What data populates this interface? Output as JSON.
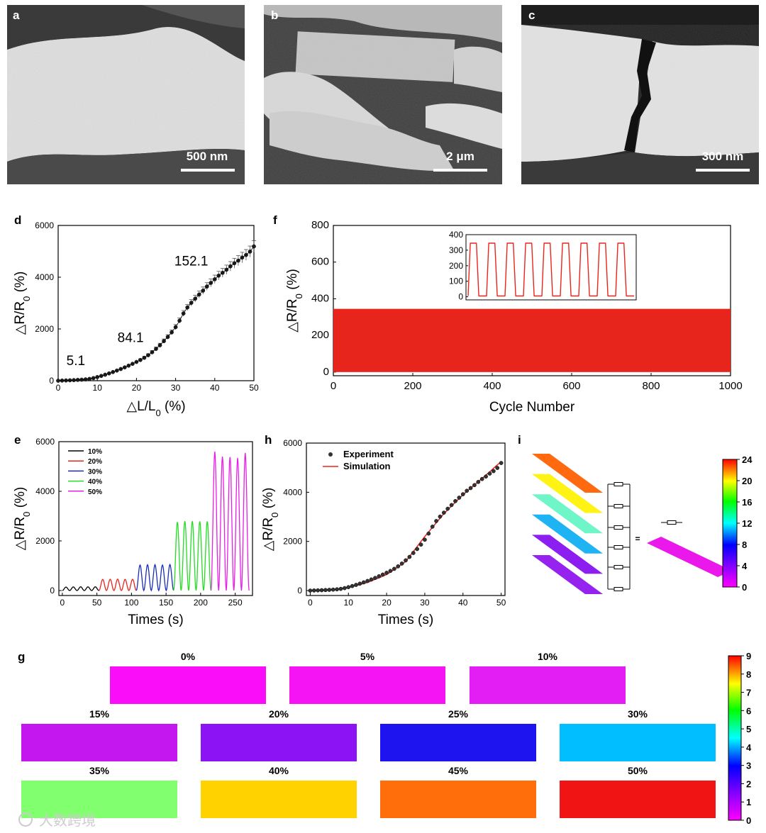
{
  "panel_labels": {
    "a": "a",
    "b": "b",
    "c": "c",
    "d": "d",
    "e": "e",
    "f": "f",
    "g": "g",
    "h": "h",
    "i": "i"
  },
  "sem": {
    "a": {
      "scale_text": "500 nm"
    },
    "b": {
      "scale_text": "2 μm"
    },
    "c": {
      "scale_text": "300 nm"
    }
  },
  "watermark": "大数跨境",
  "colors": {
    "red": "#e8251c",
    "black": "#000000",
    "blue": "#1a2db8",
    "green": "#22dd22",
    "magenta": "#e81ee8"
  },
  "chart_data": [
    {
      "id": "d",
      "type": "scatter",
      "xlabel_main": "△L/L",
      "xlabel_sub": "0",
      "xlabel_tail": " (%)",
      "ylabel_main": "△R/R",
      "ylabel_sub": "0",
      "ylabel_tail": " (%)",
      "xlim": [
        0,
        50
      ],
      "ylim": [
        0,
        6000
      ],
      "xticks": [
        "0",
        "10",
        "20",
        "30",
        "40",
        "50"
      ],
      "yticks": [
        "0",
        "2000",
        "4000",
        "6000"
      ],
      "annotations": [
        {
          "text": "5.1",
          "x": 4.5,
          "y": 600
        },
        {
          "text": "84.1",
          "x": 18.5,
          "y": 1500
        },
        {
          "text": "152.1",
          "x": 34,
          "y": 4450
        }
      ],
      "x": [
        0,
        1,
        2,
        3,
        4,
        5,
        6,
        7,
        8,
        9,
        10,
        11,
        12,
        13,
        14,
        15,
        16,
        17,
        18,
        19,
        20,
        21,
        22,
        23,
        24,
        25,
        26,
        27,
        28,
        29,
        30,
        31,
        32,
        33,
        34,
        35,
        36,
        37,
        38,
        39,
        40,
        41,
        42,
        43,
        44,
        45,
        46,
        47,
        48,
        49,
        50
      ],
      "y": [
        0,
        5,
        10,
        16,
        23,
        31,
        40,
        52,
        70,
        100,
        140,
        185,
        232,
        282,
        335,
        392,
        452,
        515,
        582,
        652,
        725,
        800,
        885,
        985,
        1100,
        1230,
        1370,
        1530,
        1690,
        1870,
        2070,
        2320,
        2600,
        2830,
        3010,
        3170,
        3330,
        3480,
        3640,
        3780,
        3920,
        4060,
        4170,
        4290,
        4420,
        4540,
        4640,
        4760,
        4860,
        4990,
        5190
      ]
    },
    {
      "id": "f",
      "type": "area",
      "xlabel": "Cycle Number",
      "ylabel_main": "△R/R",
      "ylabel_sub": "0",
      "ylabel_tail": " (%)",
      "xlim": [
        0,
        1000
      ],
      "ylim": [
        -20,
        800
      ],
      "xticks": [
        "0",
        "200",
        "400",
        "600",
        "800",
        "1000"
      ],
      "yticks": [
        "0",
        "200",
        "400",
        "600",
        "800"
      ],
      "band_min": 0,
      "band_max": 345,
      "inset": {
        "type": "line",
        "ylim": [
          -20,
          400
        ],
        "yticks": [
          "0",
          "100",
          "200",
          "300",
          "400"
        ],
        "cycles": 9,
        "min": 5,
        "max": 345
      }
    },
    {
      "id": "e",
      "type": "line",
      "xlabel": "Times (s)",
      "ylabel_main": "△R/R",
      "ylabel_sub": "0",
      "ylabel_tail": " (%)",
      "xlim": [
        -5,
        275
      ],
      "ylim": [
        -200,
        6000
      ],
      "xticks": [
        "0",
        "50",
        "100",
        "150",
        "200",
        "250"
      ],
      "yticks": [
        "0",
        "2000",
        "4000",
        "6000"
      ],
      "series": [
        {
          "name": "10%",
          "t_start": 0,
          "t_end": 53,
          "cycles": 5,
          "peaks": [
            140,
            145,
            150,
            148,
            150
          ]
        },
        {
          "name": "20%",
          "t_start": 53,
          "t_end": 107,
          "cycles": 5,
          "peaks": [
            450,
            455,
            460,
            450,
            455
          ]
        },
        {
          "name": "30%",
          "t_start": 107,
          "t_end": 161,
          "cycles": 5,
          "peaks": [
            1030,
            1040,
            1040,
            1030,
            1050
          ]
        },
        {
          "name": "40%",
          "t_start": 161,
          "t_end": 215,
          "cycles": 5,
          "peaks": [
            2760,
            2800,
            2800,
            2790,
            2790
          ]
        },
        {
          "name": "50%",
          "t_start": 215,
          "t_end": 270,
          "cycles": 5,
          "peaks": [
            5600,
            5400,
            5380,
            5350,
            5550
          ]
        }
      ]
    },
    {
      "id": "h",
      "type": "scatter",
      "xlabel": "Times (s)",
      "ylabel_main": "△R/R",
      "ylabel_sub": "0",
      "ylabel_tail": " (%)",
      "xlim": [
        -1,
        51
      ],
      "ylim": [
        -200,
        6000
      ],
      "xticks": [
        "0",
        "10",
        "20",
        "30",
        "40",
        "50"
      ],
      "yticks": [
        "0",
        "2000",
        "4000",
        "6000"
      ],
      "series": [
        {
          "name": "Experiment",
          "x": [
            0,
            1,
            2,
            3,
            4,
            5,
            6,
            7,
            8,
            9,
            10,
            11,
            12,
            13,
            14,
            15,
            16,
            17,
            18,
            19,
            20,
            21,
            22,
            23,
            24,
            25,
            26,
            27,
            28,
            29,
            30,
            31,
            32,
            33,
            34,
            35,
            36,
            37,
            38,
            39,
            40,
            41,
            42,
            43,
            44,
            45,
            46,
            47,
            48,
            49,
            50
          ],
          "y": [
            0,
            5,
            10,
            16,
            23,
            31,
            40,
            52,
            70,
            100,
            140,
            185,
            232,
            282,
            335,
            392,
            452,
            515,
            582,
            652,
            725,
            800,
            885,
            985,
            1100,
            1230,
            1370,
            1530,
            1690,
            1870,
            2070,
            2320,
            2600,
            2830,
            3010,
            3170,
            3330,
            3480,
            3640,
            3780,
            3920,
            4060,
            4170,
            4290,
            4420,
            4540,
            4640,
            4760,
            4860,
            4990,
            5190
          ]
        },
        {
          "name": "Simulation",
          "x": [
            0,
            5,
            10,
            15,
            20,
            25,
            30,
            35,
            40,
            45,
            50
          ],
          "y": [
            0,
            25,
            120,
            330,
            650,
            1180,
            2200,
            3130,
            3900,
            4560,
            5250
          ]
        }
      ]
    },
    {
      "id": "i",
      "type": "heatmap",
      "colorbar_ticks": [
        "0",
        "4",
        "8",
        "12",
        "16",
        "20",
        "24"
      ],
      "layer_colors": [
        "#ff6a10",
        "#fff314",
        "#6ef5c8",
        "#1eb4f4",
        "#8c1ef0",
        "#9622f0"
      ],
      "equivalent_color": "#ea18ea",
      "equals_text": "="
    },
    {
      "id": "g",
      "type": "heatmap",
      "colorbar_ticks": [
        "0",
        "1",
        "2",
        "3",
        "4",
        "5",
        "6",
        "7",
        "8",
        "9"
      ],
      "strains": [
        {
          "label": "0%",
          "color": "#fa0efa"
        },
        {
          "label": "5%",
          "color": "#f414f4"
        },
        {
          "label": "10%",
          "color": "#e21ef5"
        },
        {
          "label": "15%",
          "color": "#c416ee"
        },
        {
          "label": "20%",
          "color": "#8c14f4"
        },
        {
          "label": "25%",
          "color": "#1e14f0"
        },
        {
          "label": "30%",
          "color": "#00beff"
        },
        {
          "label": "35%",
          "color": "#82ff6e"
        },
        {
          "label": "40%",
          "color": "#ffd200"
        },
        {
          "label": "45%",
          "color": "#ff6e0a"
        },
        {
          "label": "50%",
          "color": "#f01414"
        }
      ]
    }
  ]
}
